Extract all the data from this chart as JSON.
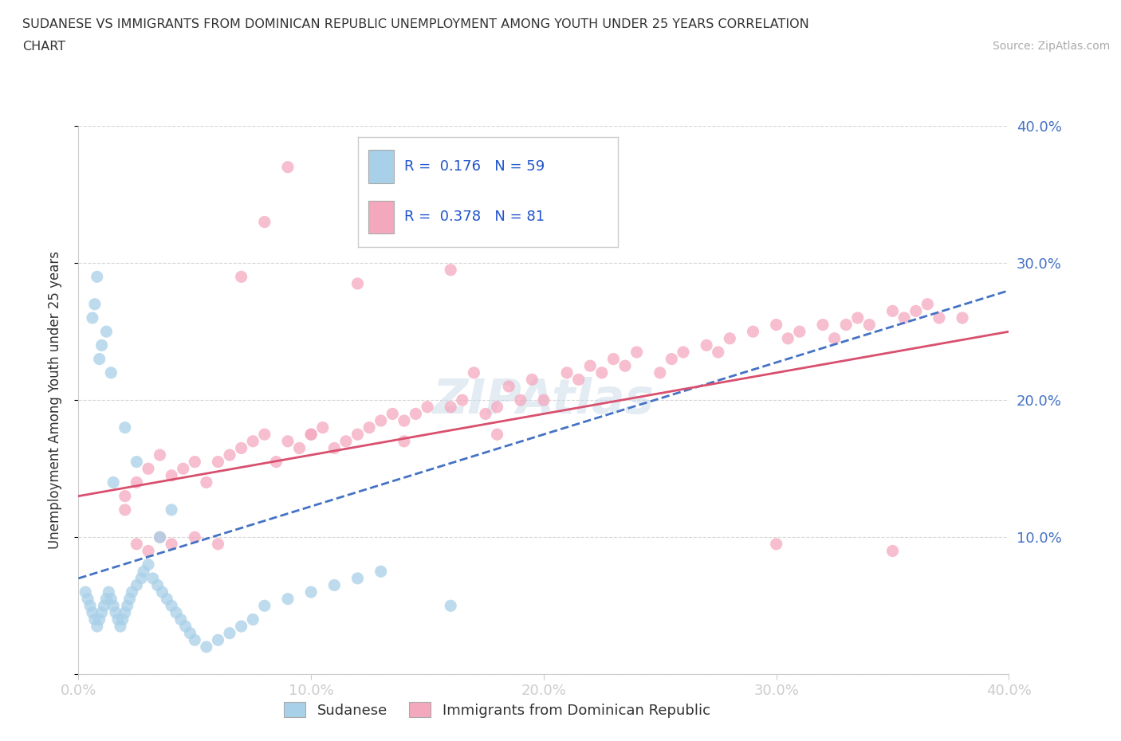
{
  "title_line1": "SUDANESE VS IMMIGRANTS FROM DOMINICAN REPUBLIC UNEMPLOYMENT AMONG YOUTH UNDER 25 YEARS CORRELATION",
  "title_line2": "CHART",
  "source_text": "Source: ZipAtlas.com",
  "ylabel": "Unemployment Among Youth under 25 years",
  "xlim": [
    0.0,
    0.4
  ],
  "ylim": [
    0.0,
    0.4
  ],
  "x_ticks": [
    0.0,
    0.1,
    0.2,
    0.3,
    0.4
  ],
  "x_tick_labels": [
    "0.0%",
    "10.0%",
    "20.0%",
    "30.0%",
    "40.0%"
  ],
  "y_ticks": [
    0.0,
    0.1,
    0.2,
    0.3,
    0.4
  ],
  "y_tick_labels_right": [
    "",
    "10.0%",
    "20.0%",
    "30.0%",
    "40.0%"
  ],
  "color_sudanese": "#A8D0E8",
  "color_dominican": "#F4A8BE",
  "color_line_sudanese": "#4472C4",
  "color_line_dominican": "#D94F6E",
  "R_sudanese": 0.176,
  "N_sudanese": 59,
  "R_dominican": 0.378,
  "N_dominican": 81,
  "watermark": "ZIPAtlas",
  "sudanese_x": [
    0.003,
    0.004,
    0.005,
    0.006,
    0.007,
    0.008,
    0.009,
    0.01,
    0.011,
    0.012,
    0.013,
    0.014,
    0.015,
    0.016,
    0.017,
    0.018,
    0.019,
    0.02,
    0.021,
    0.022,
    0.023,
    0.025,
    0.027,
    0.028,
    0.03,
    0.032,
    0.034,
    0.036,
    0.038,
    0.04,
    0.042,
    0.044,
    0.046,
    0.048,
    0.05,
    0.055,
    0.06,
    0.065,
    0.07,
    0.075,
    0.08,
    0.09,
    0.1,
    0.11,
    0.12,
    0.13,
    0.04,
    0.035,
    0.025,
    0.015,
    0.008,
    0.006,
    0.007,
    0.009,
    0.01,
    0.012,
    0.014,
    0.02,
    0.16
  ],
  "sudanese_y": [
    0.06,
    0.055,
    0.05,
    0.045,
    0.04,
    0.035,
    0.04,
    0.045,
    0.05,
    0.055,
    0.06,
    0.055,
    0.05,
    0.045,
    0.04,
    0.035,
    0.04,
    0.045,
    0.05,
    0.055,
    0.06,
    0.065,
    0.07,
    0.075,
    0.08,
    0.07,
    0.065,
    0.06,
    0.055,
    0.05,
    0.045,
    0.04,
    0.035,
    0.03,
    0.025,
    0.02,
    0.025,
    0.03,
    0.035,
    0.04,
    0.05,
    0.055,
    0.06,
    0.065,
    0.07,
    0.075,
    0.12,
    0.1,
    0.155,
    0.14,
    0.29,
    0.26,
    0.27,
    0.23,
    0.24,
    0.25,
    0.22,
    0.18,
    0.05
  ],
  "dominican_x": [
    0.02,
    0.025,
    0.03,
    0.035,
    0.04,
    0.045,
    0.05,
    0.055,
    0.06,
    0.065,
    0.07,
    0.075,
    0.08,
    0.085,
    0.09,
    0.095,
    0.1,
    0.105,
    0.11,
    0.115,
    0.12,
    0.125,
    0.13,
    0.135,
    0.14,
    0.145,
    0.15,
    0.16,
    0.165,
    0.17,
    0.175,
    0.18,
    0.185,
    0.19,
    0.195,
    0.2,
    0.21,
    0.215,
    0.22,
    0.225,
    0.23,
    0.235,
    0.24,
    0.25,
    0.255,
    0.26,
    0.27,
    0.275,
    0.28,
    0.29,
    0.3,
    0.305,
    0.31,
    0.32,
    0.325,
    0.33,
    0.335,
    0.34,
    0.35,
    0.355,
    0.36,
    0.365,
    0.37,
    0.02,
    0.025,
    0.03,
    0.035,
    0.04,
    0.05,
    0.06,
    0.07,
    0.08,
    0.09,
    0.1,
    0.12,
    0.14,
    0.16,
    0.18,
    0.3,
    0.38,
    0.35
  ],
  "dominican_y": [
    0.13,
    0.14,
    0.15,
    0.16,
    0.145,
    0.15,
    0.155,
    0.14,
    0.155,
    0.16,
    0.165,
    0.17,
    0.175,
    0.155,
    0.17,
    0.165,
    0.175,
    0.18,
    0.165,
    0.17,
    0.175,
    0.18,
    0.185,
    0.19,
    0.185,
    0.19,
    0.195,
    0.195,
    0.2,
    0.22,
    0.19,
    0.195,
    0.21,
    0.2,
    0.215,
    0.2,
    0.22,
    0.215,
    0.225,
    0.22,
    0.23,
    0.225,
    0.235,
    0.22,
    0.23,
    0.235,
    0.24,
    0.235,
    0.245,
    0.25,
    0.255,
    0.245,
    0.25,
    0.255,
    0.245,
    0.255,
    0.26,
    0.255,
    0.265,
    0.26,
    0.265,
    0.27,
    0.26,
    0.12,
    0.095,
    0.09,
    0.1,
    0.095,
    0.1,
    0.095,
    0.29,
    0.33,
    0.37,
    0.175,
    0.285,
    0.17,
    0.295,
    0.175,
    0.095,
    0.26,
    0.09
  ]
}
